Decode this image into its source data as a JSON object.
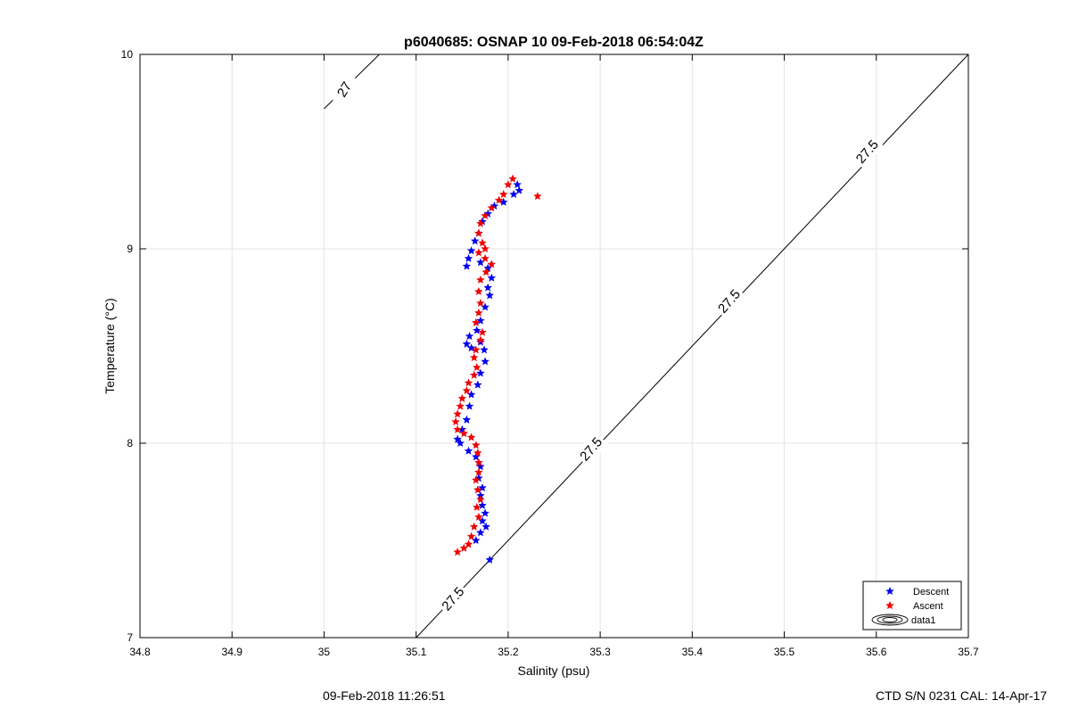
{
  "chart_data": {
    "type": "scatter",
    "title": "p6040685: OSNAP 10 09-Feb-2018 06:54:04Z",
    "xlabel": "Salinity (psu)",
    "ylabel": "Temperature (°C)",
    "xlim": [
      34.8,
      35.7
    ],
    "ylim": [
      7,
      10
    ],
    "xticks": [
      "34.8",
      "34.9",
      "35",
      "35.1",
      "35.2",
      "35.3",
      "35.4",
      "35.5",
      "35.6",
      "35.7"
    ],
    "yticks": [
      "7",
      "8",
      "9",
      "10"
    ],
    "grid": true,
    "legend_position": "bottom-right",
    "series": [
      {
        "name": "Descent",
        "color": "#0000ee",
        "marker": "pentagram",
        "points": [
          [
            35.21,
            9.33
          ],
          [
            35.212,
            9.3
          ],
          [
            35.206,
            9.28
          ],
          [
            35.195,
            9.24
          ],
          [
            35.185,
            9.22
          ],
          [
            35.178,
            9.18
          ],
          [
            35.172,
            9.14
          ],
          [
            35.168,
            9.08
          ],
          [
            35.164,
            9.04
          ],
          [
            35.16,
            8.99
          ],
          [
            35.157,
            8.95
          ],
          [
            35.155,
            8.91
          ],
          [
            35.17,
            8.93
          ],
          [
            35.178,
            8.9
          ],
          [
            35.182,
            8.85
          ],
          [
            35.178,
            8.8
          ],
          [
            35.18,
            8.76
          ],
          [
            35.175,
            8.7
          ],
          [
            35.17,
            8.63
          ],
          [
            35.166,
            8.58
          ],
          [
            35.17,
            8.52
          ],
          [
            35.174,
            8.48
          ],
          [
            35.158,
            8.55
          ],
          [
            35.155,
            8.51
          ],
          [
            35.16,
            8.49
          ],
          [
            35.175,
            8.42
          ],
          [
            35.17,
            8.36
          ],
          [
            35.167,
            8.3
          ],
          [
            35.16,
            8.25
          ],
          [
            35.158,
            8.19
          ],
          [
            35.155,
            8.12
          ],
          [
            35.15,
            8.07
          ],
          [
            35.145,
            8.02
          ],
          [
            35.148,
            8.0
          ],
          [
            35.157,
            7.96
          ],
          [
            35.165,
            7.93
          ],
          [
            35.17,
            7.88
          ],
          [
            35.168,
            7.82
          ],
          [
            35.172,
            7.77
          ],
          [
            35.17,
            7.73
          ],
          [
            35.172,
            7.68
          ],
          [
            35.175,
            7.64
          ],
          [
            35.172,
            7.6
          ],
          [
            35.176,
            7.57
          ],
          [
            35.17,
            7.54
          ],
          [
            35.165,
            7.5
          ],
          [
            35.18,
            7.4
          ]
        ]
      },
      {
        "name": "Ascent",
        "color": "#ee0000",
        "marker": "pentagram",
        "points": [
          [
            35.232,
            9.27
          ],
          [
            35.205,
            9.36
          ],
          [
            35.2,
            9.33
          ],
          [
            35.195,
            9.28
          ],
          [
            35.19,
            9.25
          ],
          [
            35.182,
            9.21
          ],
          [
            35.175,
            9.17
          ],
          [
            35.17,
            9.13
          ],
          [
            35.168,
            9.08
          ],
          [
            35.172,
            9.03
          ],
          [
            35.175,
            9.0
          ],
          [
            35.168,
            8.98
          ],
          [
            35.175,
            8.95
          ],
          [
            35.182,
            8.92
          ],
          [
            35.176,
            8.88
          ],
          [
            35.17,
            8.84
          ],
          [
            35.168,
            8.78
          ],
          [
            35.17,
            8.72
          ],
          [
            35.168,
            8.67
          ],
          [
            35.165,
            8.62
          ],
          [
            35.172,
            8.57
          ],
          [
            35.17,
            8.53
          ],
          [
            35.165,
            8.48
          ],
          [
            35.163,
            8.44
          ],
          [
            35.166,
            8.39
          ],
          [
            35.163,
            8.35
          ],
          [
            35.157,
            8.31
          ],
          [
            35.155,
            8.27
          ],
          [
            35.15,
            8.23
          ],
          [
            35.148,
            8.19
          ],
          [
            35.145,
            8.15
          ],
          [
            35.143,
            8.11
          ],
          [
            35.145,
            8.07
          ],
          [
            35.152,
            8.05
          ],
          [
            35.16,
            8.03
          ],
          [
            35.165,
            7.99
          ],
          [
            35.167,
            7.95
          ],
          [
            35.168,
            7.9
          ],
          [
            35.168,
            7.85
          ],
          [
            35.165,
            7.81
          ],
          [
            35.167,
            7.76
          ],
          [
            35.17,
            7.71
          ],
          [
            35.166,
            7.67
          ],
          [
            35.168,
            7.62
          ],
          [
            35.163,
            7.57
          ],
          [
            35.16,
            7.52
          ],
          [
            35.157,
            7.48
          ],
          [
            35.152,
            7.46
          ],
          [
            35.145,
            7.44
          ]
        ]
      }
    ],
    "contours": [
      {
        "name": "data1",
        "line_color": "#000000",
        "lines": [
          {
            "level_label": "27",
            "points": [
              [
                35.0,
                9.72
              ],
              [
                35.06,
                10.0
              ]
            ],
            "label_at": [
              35.022,
              9.82
            ],
            "label_angle": -58
          },
          {
            "level_label": "27.5",
            "points": [
              [
                35.1,
                7.0
              ],
              [
                35.7,
                10.0
              ]
            ],
            "labels_at": [
              [
                35.14,
                7.2
              ],
              [
                35.29,
                7.97
              ],
              [
                35.44,
                8.73
              ],
              [
                35.59,
                9.5
              ]
            ],
            "label_angle": -49
          }
        ]
      }
    ],
    "legend": {
      "entries": [
        {
          "label": "Descent",
          "color": "#0000ee"
        },
        {
          "label": "Ascent",
          "color": "#ee0000"
        },
        {
          "label": "data1",
          "color": "#000000"
        }
      ]
    }
  },
  "footer": {
    "timestamp": "09-Feb-2018 11:26:51",
    "ctd_info": "CTD S/N 0231  CAL: 14-Apr-17"
  }
}
